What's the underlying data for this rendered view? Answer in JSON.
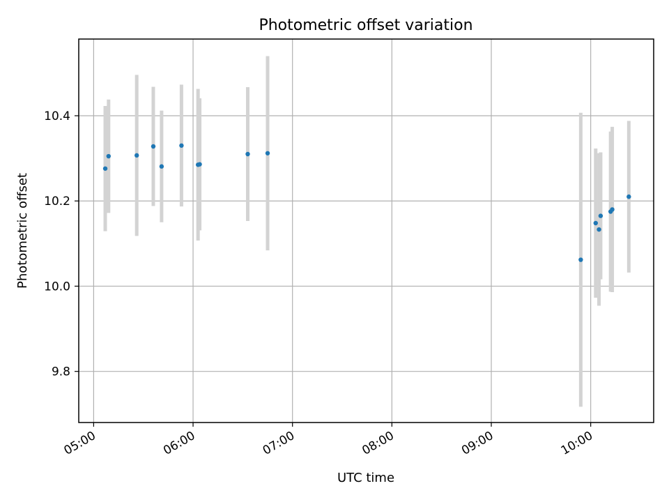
{
  "chart_data": {
    "type": "scatter",
    "title": "Photometric offset variation",
    "xlabel": "UTC time",
    "ylabel": "Photometric offset",
    "xlim": [
      "04:51",
      "10:38"
    ],
    "ylim": [
      9.68,
      10.58
    ],
    "x_ticks": [
      "05:00",
      "06:00",
      "07:00",
      "08:00",
      "09:00",
      "10:00"
    ],
    "y_ticks": [
      9.8,
      10.0,
      10.2,
      10.4
    ],
    "y_tick_labels": [
      "9.8",
      "10.0",
      "10.2",
      "10.4"
    ],
    "grid": true,
    "point_color": "#1f77b4",
    "error_bar_color": "#d3d3d3",
    "points": [
      {
        "x": "05:07",
        "y": 10.276,
        "err": 0.147
      },
      {
        "x": "05:09",
        "y": 10.305,
        "err": 0.133
      },
      {
        "x": "05:26",
        "y": 10.307,
        "err": 0.189
      },
      {
        "x": "05:36",
        "y": 10.328,
        "err": 0.14
      },
      {
        "x": "05:41",
        "y": 10.281,
        "err": 0.131
      },
      {
        "x": "05:53",
        "y": 10.33,
        "err": 0.143
      },
      {
        "x": "06:03",
        "y": 10.285,
        "err": 0.178
      },
      {
        "x": "06:04",
        "y": 10.286,
        "err": 0.155
      },
      {
        "x": "06:33",
        "y": 10.31,
        "err": 0.157
      },
      {
        "x": "06:45",
        "y": 10.312,
        "err": 0.228
      },
      {
        "x": "09:54",
        "y": 10.062,
        "err": 0.345
      },
      {
        "x": "10:03",
        "y": 10.148,
        "err": 0.175
      },
      {
        "x": "10:05",
        "y": 10.133,
        "err": 0.179
      },
      {
        "x": "10:06",
        "y": 10.165,
        "err": 0.149
      },
      {
        "x": "10:12",
        "y": 10.175,
        "err": 0.188
      },
      {
        "x": "10:13",
        "y": 10.18,
        "err": 0.194
      },
      {
        "x": "10:23",
        "y": 10.21,
        "err": 0.178
      }
    ]
  }
}
